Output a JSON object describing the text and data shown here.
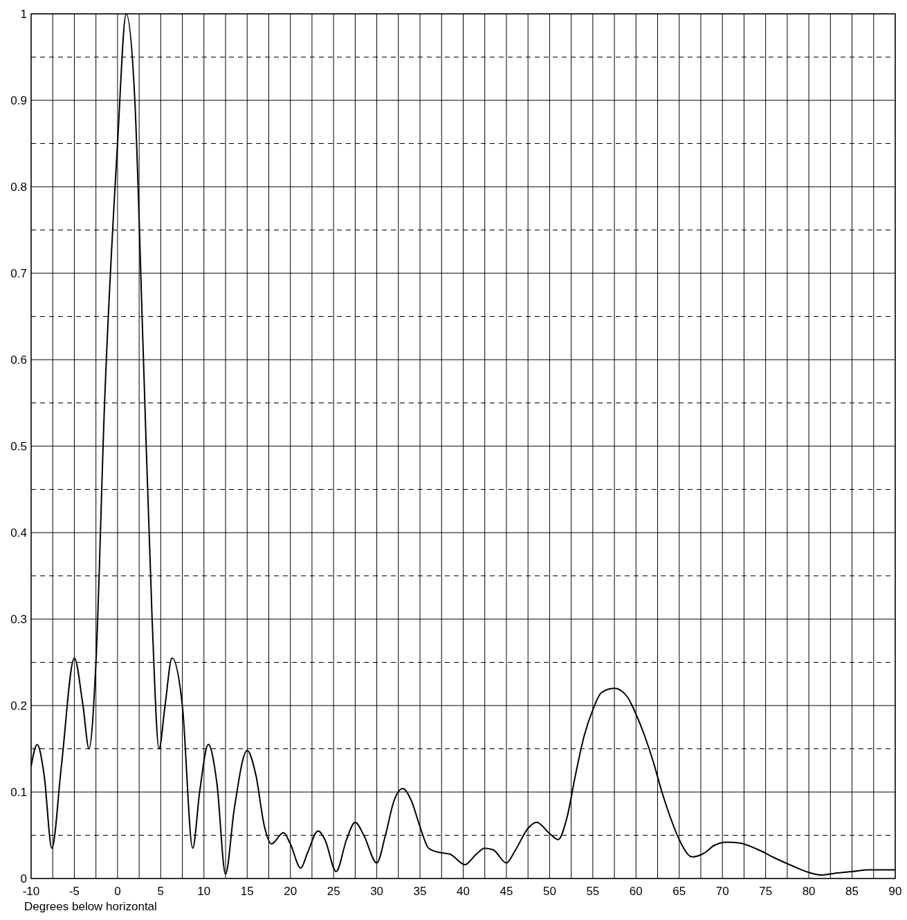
{
  "chart_data": {
    "type": "line",
    "xlabel": "Degrees below horizontal",
    "xlim": [
      -10,
      90
    ],
    "xticks": [
      -10,
      {
        "value": -7.5,
        "label": null
      },
      -5,
      {
        "value": -2.5,
        "label": null
      },
      0,
      {
        "value": 2.5,
        "label": null
      },
      5,
      {
        "value": 7.5,
        "label": null
      },
      10,
      {
        "value": 12.5,
        "label": null
      },
      15,
      {
        "value": 17.5,
        "label": null
      },
      20,
      {
        "value": 22.5,
        "label": null
      },
      25,
      {
        "value": 27.5,
        "label": null
      },
      30,
      {
        "value": 32.5,
        "label": null
      },
      35,
      {
        "value": 37.5,
        "label": null
      },
      40,
      {
        "value": 42.5,
        "label": null
      },
      45,
      {
        "value": 47.5,
        "label": null
      },
      50,
      {
        "value": 52.5,
        "label": null
      },
      55,
      {
        "value": 57.5,
        "label": null
      },
      60,
      {
        "value": 62.5,
        "label": null
      },
      65,
      {
        "value": 67.5,
        "label": null
      },
      70,
      {
        "value": 72.5,
        "label": null
      },
      75,
      {
        "value": 77.5,
        "label": null
      },
      80,
      {
        "value": 82.5,
        "label": null
      },
      85,
      {
        "value": 87.5,
        "label": null
      },
      90
    ],
    "ylim": [
      0,
      1
    ],
    "yticks": [
      0,
      {
        "value": 0.05,
        "label": null
      },
      0.1,
      {
        "value": 0.15,
        "label": null
      },
      0.2,
      {
        "value": 0.25,
        "label": null
      },
      0.3,
      {
        "value": 0.35,
        "label": null
      },
      0.4,
      {
        "value": 0.45,
        "label": null
      },
      0.5,
      {
        "value": 0.55,
        "label": null
      },
      0.6,
      {
        "value": 0.65,
        "label": null
      },
      0.7,
      {
        "value": 0.75,
        "label": null
      },
      0.8,
      {
        "value": 0.85,
        "label": null
      },
      0.9,
      {
        "value": 0.95,
        "label": null
      },
      1
    ],
    "grid": true,
    "marker": "none",
    "line_style": "solid",
    "series": [
      {
        "color": "#000000",
        "x": [
          -10,
          -9.3,
          -8.5,
          -7.6,
          -6.5,
          -5,
          -4,
          -3.3,
          -2.5,
          -1.5,
          0,
          1,
          2,
          3,
          4,
          4.8,
          5.5,
          6.3,
          7.5,
          8.7,
          9.5,
          10.5,
          11.5,
          12.5,
          13.5,
          15,
          16,
          17,
          17.8,
          19.2,
          20,
          21.2,
          22,
          23.2,
          24,
          25.3,
          26.5,
          27.5,
          28.5,
          30,
          31,
          32,
          33,
          34,
          35,
          36,
          37.3,
          38.5,
          40.2,
          41.5,
          42.5,
          43.5,
          45,
          46,
          47.5,
          48.5,
          50,
          51,
          52,
          53,
          54,
          55,
          56,
          57.5,
          59,
          60,
          61,
          62,
          63,
          64,
          65,
          66.5,
          68,
          69,
          70.5,
          72,
          74,
          76,
          78,
          80,
          81.5,
          83,
          85,
          87,
          90
        ],
        "values": [
          0.13,
          0.155,
          0.12,
          0.035,
          0.13,
          0.255,
          0.2,
          0.15,
          0.25,
          0.55,
          0.85,
          1.0,
          0.9,
          0.6,
          0.3,
          0.15,
          0.2,
          0.255,
          0.2,
          0.035,
          0.1,
          0.155,
          0.11,
          0.005,
          0.08,
          0.148,
          0.12,
          0.06,
          0.04,
          0.053,
          0.04,
          0.012,
          0.03,
          0.055,
          0.045,
          0.008,
          0.045,
          0.065,
          0.05,
          0.018,
          0.05,
          0.09,
          0.104,
          0.09,
          0.06,
          0.035,
          0.03,
          0.028,
          0.016,
          0.028,
          0.035,
          0.033,
          0.018,
          0.032,
          0.058,
          0.065,
          0.052,
          0.045,
          0.07,
          0.12,
          0.165,
          0.195,
          0.215,
          0.22,
          0.21,
          0.19,
          0.165,
          0.135,
          0.1,
          0.07,
          0.045,
          0.025,
          0.03,
          0.038,
          0.042,
          0.041,
          0.034,
          0.024,
          0.015,
          0.007,
          0.004,
          0.006,
          0.008,
          0.01,
          0.01
        ]
      }
    ]
  }
}
